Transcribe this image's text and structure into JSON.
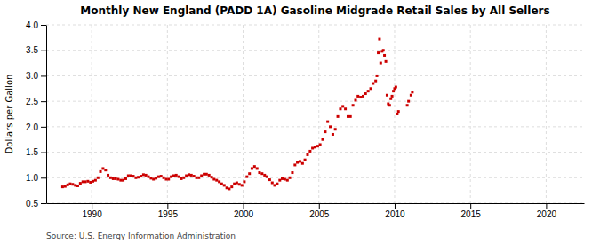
{
  "chart_data": {
    "type": "scatter",
    "title": "Monthly New England (PADD 1A) Gasoline Midgrade Retail Sales by All Sellers",
    "ylabel": "Dollars per Gallon",
    "annotations": [
      "Source: U.S. Energy Information Administration"
    ],
    "color": "#cc0000",
    "marker": "square",
    "grid": true,
    "xlim": [
      1987.0,
      2022.5
    ],
    "ylim": [
      0.5,
      4.0
    ],
    "xticks": [
      1990,
      1995,
      2000,
      2005,
      2010,
      2015,
      2020
    ],
    "yticks": [
      0.5,
      {
        "value": 1.0,
        "label": "1.0"
      },
      1.5,
      {
        "value": 2.0,
        "label": "2.0"
      },
      2.5,
      {
        "value": 3.0,
        "label": "3.0"
      },
      3.5,
      {
        "value": 4.0,
        "label": "4.0"
      }
    ],
    "x": [
      1988.08,
      1988.25,
      1988.42,
      1988.58,
      1988.75,
      1988.92,
      1989.08,
      1989.25,
      1989.42,
      1989.58,
      1989.75,
      1989.92,
      1990.08,
      1990.25,
      1990.42,
      1990.58,
      1990.75,
      1990.92,
      1991.08,
      1991.25,
      1991.42,
      1991.58,
      1991.75,
      1991.92,
      1992.08,
      1992.25,
      1992.42,
      1992.58,
      1992.75,
      1992.92,
      1993.08,
      1993.25,
      1993.42,
      1993.58,
      1993.75,
      1993.92,
      1994.08,
      1994.25,
      1994.42,
      1994.58,
      1994.75,
      1994.92,
      1995.08,
      1995.25,
      1995.42,
      1995.58,
      1995.75,
      1995.92,
      1996.08,
      1996.25,
      1996.42,
      1996.58,
      1996.75,
      1996.92,
      1997.08,
      1997.25,
      1997.42,
      1997.58,
      1997.75,
      1997.92,
      1998.08,
      1998.25,
      1998.42,
      1998.58,
      1998.75,
      1998.92,
      1999.08,
      1999.25,
      1999.42,
      1999.58,
      1999.75,
      1999.92,
      2000.08,
      2000.25,
      2000.42,
      2000.58,
      2000.75,
      2000.92,
      2001.08,
      2001.25,
      2001.42,
      2001.58,
      2001.75,
      2001.92,
      2002.08,
      2002.25,
      2002.42,
      2002.58,
      2002.75,
      2002.92,
      2003.08,
      2003.25,
      2003.42,
      2003.58,
      2003.75,
      2003.92,
      2004.08,
      2004.25,
      2004.42,
      2004.58,
      2004.75,
      2004.92,
      2005.08,
      2005.25,
      2005.42,
      2005.58,
      2005.75,
      2005.92,
      2006.08,
      2006.25,
      2006.42,
      2006.58,
      2006.75,
      2006.92,
      2007.08,
      2007.25,
      2007.42,
      2007.58,
      2007.75,
      2007.92,
      2008.08,
      2008.25,
      2008.42,
      2008.58,
      2008.75,
      2008.83,
      2008.92,
      2009.0,
      2009.08,
      2009.17,
      2009.25,
      2009.33,
      2009.42,
      2009.5,
      2009.58,
      2009.67,
      2009.75,
      2009.83,
      2009.92,
      2010.0,
      2010.08,
      2010.17,
      2010.25,
      2010.83,
      2010.92,
      2011.08,
      2011.17
    ],
    "values": [
      0.82,
      0.83,
      0.86,
      0.88,
      0.87,
      0.85,
      0.84,
      0.89,
      0.92,
      0.92,
      0.93,
      0.91,
      0.93,
      0.95,
      1.0,
      1.12,
      1.18,
      1.15,
      1.05,
      1.0,
      0.98,
      0.98,
      0.97,
      0.95,
      0.95,
      0.98,
      1.04,
      1.04,
      1.03,
      1.0,
      1.01,
      1.03,
      1.06,
      1.05,
      1.02,
      0.99,
      0.97,
      0.99,
      1.02,
      1.03,
      1.0,
      0.97,
      0.97,
      1.02,
      1.04,
      1.05,
      1.02,
      0.98,
      1.0,
      1.04,
      1.06,
      1.05,
      1.03,
      1.0,
      1.0,
      1.04,
      1.07,
      1.07,
      1.05,
      1.01,
      0.97,
      0.95,
      0.92,
      0.88,
      0.85,
      0.8,
      0.78,
      0.82,
      0.88,
      0.9,
      0.87,
      0.85,
      0.92,
      1.02,
      1.08,
      1.18,
      1.22,
      1.18,
      1.1,
      1.08,
      1.05,
      1.02,
      0.96,
      0.9,
      0.85,
      0.88,
      0.95,
      0.98,
      0.97,
      0.95,
      1.0,
      1.1,
      1.25,
      1.3,
      1.32,
      1.28,
      1.35,
      1.45,
      1.52,
      1.58,
      1.6,
      1.62,
      1.65,
      1.75,
      1.9,
      2.1,
      2.0,
      1.85,
      1.95,
      2.2,
      2.35,
      2.4,
      2.35,
      2.2,
      2.2,
      2.42,
      2.52,
      2.6,
      2.58,
      2.6,
      2.65,
      2.7,
      2.75,
      2.85,
      2.9,
      3.0,
      3.45,
      3.72,
      3.25,
      3.48,
      3.5,
      3.4,
      3.28,
      2.62,
      2.45,
      2.42,
      2.55,
      2.6,
      2.7,
      2.75,
      2.78,
      2.25,
      2.3,
      2.42,
      2.5,
      2.62,
      2.68
    ]
  }
}
